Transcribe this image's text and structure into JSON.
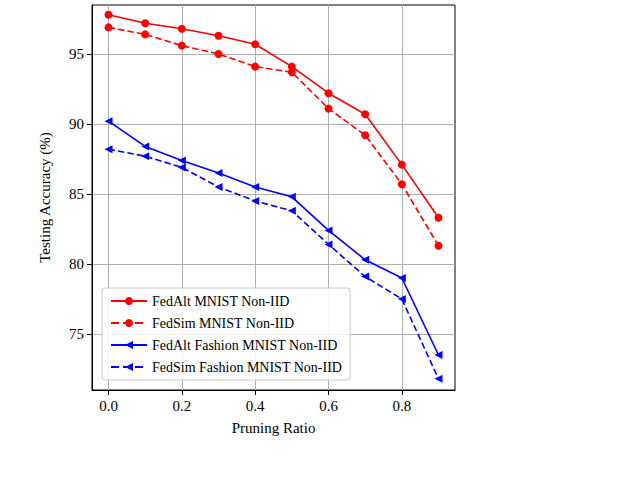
{
  "chart_data": {
    "type": "line",
    "x_label": "Pruning Ratio",
    "y_label": "Testing Accuracy (%)",
    "x": [
      0.0,
      0.1,
      0.2,
      0.3,
      0.4,
      0.5,
      0.6,
      0.7,
      0.8,
      0.9
    ],
    "xlim": [
      -0.045,
      0.945
    ],
    "xticks": [
      {
        "value": 0.0,
        "label": "0.0"
      },
      {
        "value": 0.2,
        "label": "0.2"
      },
      {
        "value": 0.4,
        "label": "0.4"
      },
      {
        "value": 0.6,
        "label": "0.6"
      },
      {
        "value": 0.8,
        "label": "0.8"
      }
    ],
    "ylim": [
      71,
      98.5
    ],
    "yticks": [
      75,
      80,
      85,
      90,
      95
    ],
    "grid": true,
    "legend": "lower left",
    "series": [
      {
        "name": "FedAlt MNIST Non-IID",
        "color": "#ff0000",
        "marker": "circle",
        "line_style": "solid",
        "values": [
          97.8,
          97.2,
          96.8,
          96.3,
          95.7,
          94.1,
          92.2,
          90.7,
          87.1,
          83.3
        ]
      },
      {
        "name": "FedSim MNIST Non-IID",
        "color": "#ff0000",
        "marker": "circle",
        "line_style": "dashed",
        "values": [
          96.9,
          96.4,
          95.6,
          95.0,
          94.1,
          93.7,
          91.1,
          89.2,
          85.7,
          81.3
        ]
      },
      {
        "name": "FedAlt Fashion MNIST Non-IID",
        "color": "#0000ff",
        "marker": "triangle_left",
        "line_style": "solid",
        "values": [
          90.2,
          88.4,
          87.4,
          86.5,
          85.5,
          84.8,
          82.4,
          80.3,
          79.0,
          73.5
        ]
      },
      {
        "name": "FedSim Fashion MNIST Non-IID",
        "color": "#0000ff",
        "marker": "triangle_left",
        "line_style": "dashed",
        "values": [
          88.2,
          87.7,
          86.9,
          85.5,
          84.5,
          83.8,
          81.4,
          79.1,
          77.5,
          71.8
        ]
      }
    ]
  }
}
